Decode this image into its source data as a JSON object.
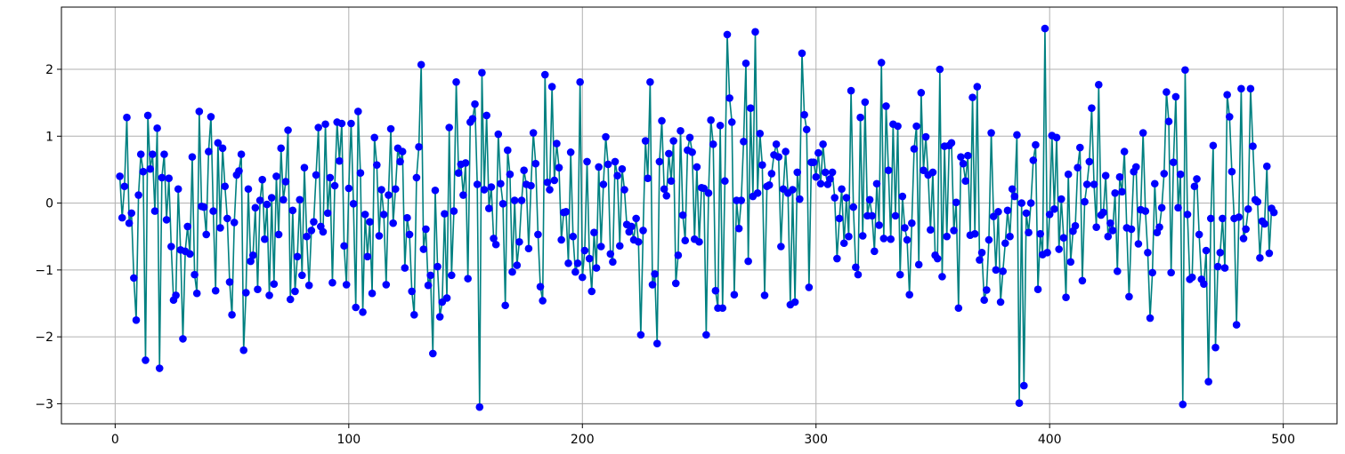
{
  "chart_data": {
    "type": "line",
    "title": "",
    "xlabel": "",
    "ylabel": "",
    "grid": true,
    "xlim": [
      -23,
      523
    ],
    "ylim": [
      -3.3,
      2.93
    ],
    "xticks": [
      0,
      100,
      200,
      300,
      400,
      500
    ],
    "yticks": [
      -3,
      -2,
      -1,
      0,
      1,
      2
    ],
    "xtick_labels": [
      "0",
      "100",
      "200",
      "300",
      "400",
      "500"
    ],
    "ytick_labels": [
      "−3",
      "−2",
      "−1",
      "0",
      "1",
      "2"
    ],
    "x_start": 2,
    "x_step": 1,
    "series": [
      {
        "style": "line+markers",
        "line_color": "#008080",
        "marker_color": "#0000ff",
        "values": [
          0.4,
          -0.22,
          0.25,
          1.28,
          -0.3,
          -0.15,
          -1.12,
          -1.75,
          0.12,
          0.73,
          0.47,
          -2.35,
          1.31,
          0.51,
          0.73,
          -0.12,
          1.12,
          -2.47,
          0.38,
          0.73,
          -0.25,
          0.37,
          -0.65,
          -1.45,
          -1.38,
          0.21,
          -0.7,
          -2.03,
          -0.72,
          -0.35,
          -0.76,
          0.69,
          -1.07,
          -1.35,
          1.37,
          -0.05,
          -0.06,
          -0.47,
          0.77,
          1.29,
          -0.12,
          -1.31,
          0.9,
          -0.37,
          0.82,
          0.25,
          -0.23,
          -1.18,
          -1.67,
          -0.29,
          0.42,
          0.48,
          0.73,
          -2.2,
          -1.34,
          0.21,
          -0.87,
          -0.78,
          -0.07,
          -1.29,
          0.04,
          0.35,
          -0.54,
          -0.02,
          -1.38,
          0.08,
          -1.21,
          0.4,
          -0.47,
          0.82,
          0.05,
          0.32,
          1.09,
          -1.44,
          -0.11,
          -1.32,
          -0.8,
          0.05,
          -1.08,
          0.53,
          -0.5,
          -1.23,
          -0.41,
          -0.28,
          0.42,
          1.13,
          -0.35,
          -0.43,
          1.18,
          -0.15,
          0.38,
          -1.19,
          0.26,
          1.21,
          0.63,
          1.19,
          -0.64,
          -1.22,
          0.22,
          1.19,
          -0.01,
          -1.56,
          1.37,
          0.45,
          -1.63,
          -0.17,
          -0.8,
          -0.28,
          -1.35,
          0.98,
          0.57,
          -0.49,
          0.2,
          -0.17,
          -1.22,
          0.12,
          1.11,
          -0.3,
          0.21,
          0.82,
          0.62,
          0.77,
          -0.97,
          -0.22,
          -0.47,
          -1.32,
          -1.67,
          0.38,
          0.84,
          2.07,
          -0.69,
          -0.39,
          -1.23,
          -1.08,
          -2.25,
          0.19,
          -0.95,
          -1.7,
          -1.48,
          -0.16,
          -1.42,
          1.13,
          -1.08,
          -0.12,
          1.81,
          0.45,
          0.58,
          0.12,
          0.6,
          -1.13,
          1.21,
          1.26,
          1.48,
          0.28,
          -3.05,
          1.95,
          0.2,
          1.31,
          -0.08,
          0.24,
          -0.53,
          -0.62,
          1.03,
          0.29,
          -0.01,
          -1.53,
          0.79,
          0.43,
          -1.03,
          0.04,
          -0.93,
          -0.58,
          0.04,
          0.49,
          0.28,
          -0.68,
          0.26,
          1.05,
          0.59,
          -0.47,
          -1.25,
          -1.46,
          1.92,
          0.31,
          0.2,
          1.74,
          0.34,
          0.89,
          0.53,
          -0.55,
          -0.14,
          -0.13,
          -0.9,
          0.76,
          -0.5,
          -1.03,
          -0.9,
          1.81,
          -1.11,
          -0.71,
          0.62,
          -0.83,
          -1.32,
          -0.44,
          -0.97,
          0.54,
          -0.65,
          0.28,
          0.99,
          0.58,
          -0.76,
          -0.88,
          0.62,
          0.41,
          -0.64,
          0.51,
          0.2,
          -0.32,
          -0.43,
          -0.35,
          -0.55,
          -0.23,
          -0.58,
          -1.97,
          -0.41,
          0.93,
          0.37,
          1.81,
          -1.22,
          -1.06,
          -2.1,
          0.62,
          1.23,
          0.21,
          0.11,
          0.74,
          0.33,
          0.93,
          -1.2,
          -0.78,
          1.08,
          -0.18,
          -0.56,
          0.79,
          0.98,
          0.76,
          -0.54,
          0.54,
          -0.58,
          0.23,
          0.22,
          -1.97,
          0.15,
          1.24,
          0.88,
          -1.31,
          -1.57,
          1.16,
          -1.57,
          0.33,
          2.52,
          1.57,
          1.21,
          -1.37,
          0.04,
          -0.38,
          0.04,
          0.92,
          2.09,
          -0.87,
          1.42,
          0.1,
          2.56,
          0.15,
          1.04,
          0.57,
          -1.38,
          0.25,
          0.27,
          0.44,
          0.72,
          0.88,
          0.69,
          -0.65,
          0.21,
          0.77,
          0.15,
          -1.52,
          0.2,
          -1.48,
          0.46,
          0.06,
          2.24,
          1.32,
          1.1,
          -1.26,
          0.61,
          0.61,
          0.39,
          0.75,
          0.29,
          0.88,
          0.46,
          0.28,
          0.36,
          0.46,
          0.08,
          -0.83,
          -0.23,
          0.21,
          -0.6,
          0.08,
          -0.5,
          1.68,
          -0.06,
          -0.96,
          -1.07,
          1.28,
          -0.49,
          1.51,
          -0.19,
          0.05,
          -0.19,
          -0.72,
          0.29,
          -0.33,
          2.1,
          -0.53,
          1.45,
          0.49,
          -0.54,
          1.18,
          -0.19,
          1.15,
          -1.07,
          0.1,
          -0.37,
          -0.55,
          -1.37,
          -0.3,
          0.81,
          1.15,
          -0.92,
          1.65,
          0.49,
          0.99,
          0.42,
          -0.4,
          0.46,
          -0.78,
          -0.83,
          2.0,
          -1.1,
          0.85,
          -0.5,
          0.86,
          0.9,
          -0.41,
          0.01,
          -1.57,
          0.69,
          0.59,
          0.33,
          0.71,
          -0.48,
          1.58,
          -0.46,
          1.74,
          -0.85,
          -0.74,
          -1.45,
          -1.3,
          -0.55,
          1.05,
          -0.2,
          -1.0,
          -0.13,
          -1.48,
          -1.02,
          -0.6,
          -0.11,
          -0.5,
          0.21,
          0.1,
          1.02,
          -2.99,
          0.0,
          -2.73,
          -0.15,
          -0.44,
          0.0,
          0.64,
          0.87,
          -1.29,
          -0.46,
          -0.77,
          2.61,
          -0.74,
          -0.17,
          1.01,
          -0.09,
          0.98,
          -0.69,
          0.06,
          -0.52,
          -1.41,
          0.43,
          -0.88,
          -0.42,
          -0.34,
          0.53,
          0.83,
          -1.16,
          0.02,
          0.28,
          0.62,
          1.42,
          0.28,
          -0.36,
          1.77,
          -0.18,
          -0.14,
          0.41,
          -0.5,
          -0.3,
          -0.41,
          0.15,
          -1.02,
          0.39,
          0.17,
          0.77,
          -0.37,
          -1.4,
          -0.39,
          0.47,
          0.54,
          -0.61,
          -0.1,
          1.05,
          -0.12,
          -0.74,
          -1.72,
          -1.04,
          0.29,
          -0.44,
          -0.36,
          -0.07,
          0.44,
          1.66,
          1.22,
          -1.04,
          0.61,
          1.59,
          -0.07,
          0.43,
          -3.01,
          1.99,
          -0.17,
          -1.14,
          -1.11,
          0.25,
          0.36,
          -0.47,
          -1.14,
          -1.21,
          -0.71,
          -2.67,
          -0.23,
          0.86,
          -2.16,
          -0.95,
          -0.74,
          -0.23,
          -0.97,
          1.62,
          1.29,
          0.47,
          -0.23,
          -1.82,
          -0.21,
          1.71,
          -0.53,
          -0.39,
          -0.09,
          1.71,
          0.85,
          0.05,
          0.02,
          -0.82,
          -0.27,
          -0.31,
          0.55,
          -0.75,
          -0.08,
          -0.14
        ]
      }
    ]
  }
}
